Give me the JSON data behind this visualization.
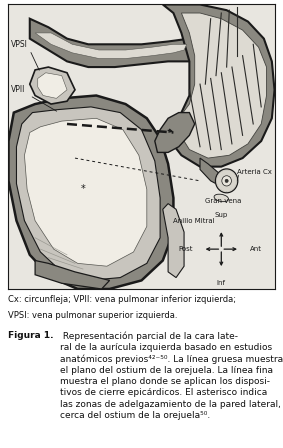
{
  "fig_width": 2.83,
  "fig_height": 4.48,
  "dpi": 100,
  "bg_color": "#ffffff",
  "caption_line1": "Cx: circunfleja; VPII: vena pulmonar inferior izquierda;",
  "caption_line2": "VPSI: vena pulmonar superior izquierda.",
  "figure_label": "Figura 1.",
  "figure_text": " Representación parcial de la cara late-ral de la aurícula izquierda basado en estudios anatómicos previos⁴²⁻⁵⁰. La línea gruesa muestra el plano del ostium de la orejuela. La línea fina muestra el plano donde se aplican los dispositivos de cierre epicárdicos. El asterisco indica las zonas de adelgazamiento de la pared lateral, cerca del ostium de la orejuela⁵⁰.",
  "font_size_labels": 5.5,
  "font_size_caption": 6.0,
  "font_size_figure_label": 6.5,
  "text_color": "#111111",
  "img_bg": "#e8e6e0",
  "dark_border": "#1a1a1a",
  "med_gray": "#8a8880",
  "light_gray": "#c8c5be",
  "lighter_gray": "#dddad2",
  "lightest": "#eeebd8",
  "white_area": "#f0ede5"
}
